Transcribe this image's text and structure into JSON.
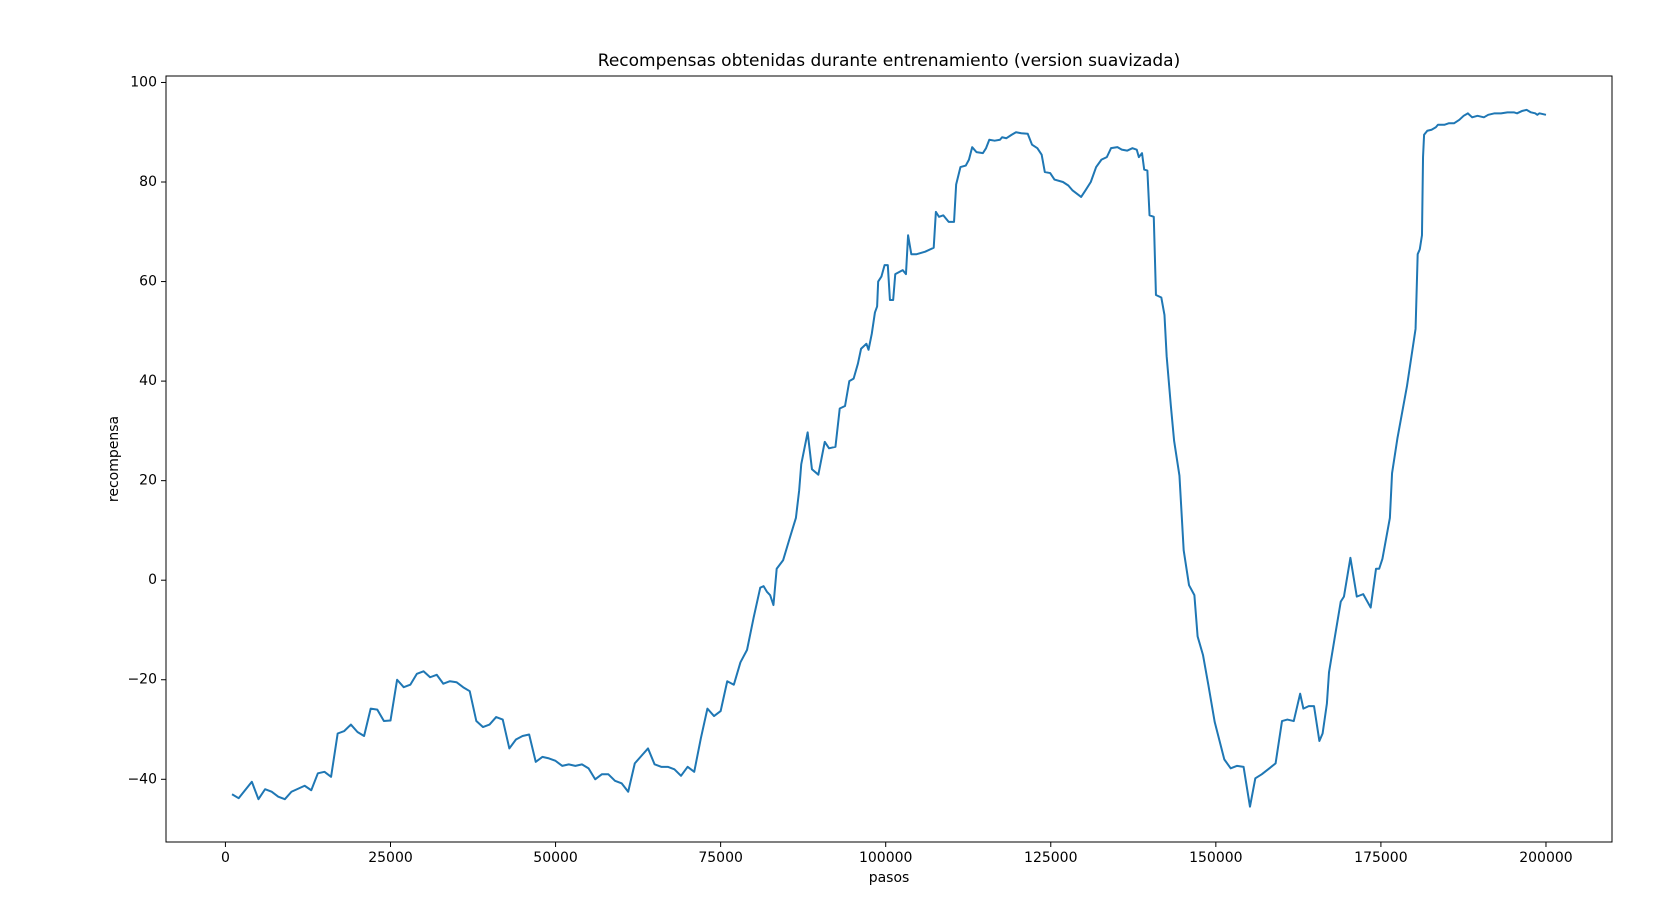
{
  "chart_data": {
    "type": "line",
    "title": "Recompensas obtenidas durante entrenamiento (version suavizada)",
    "x_label": "pasos",
    "y_label": "recompensa",
    "xlim": [
      -9000,
      210000
    ],
    "ylim": [
      -52.6,
      101.3
    ],
    "xticks": [
      0,
      25000,
      50000,
      75000,
      100000,
      125000,
      150000,
      175000,
      200000
    ],
    "yticks": [
      {
        "value": -40,
        "label": "−40"
      },
      {
        "value": -20,
        "label": "−20"
      },
      0,
      20,
      40,
      60,
      80,
      100
    ],
    "grid": false,
    "series": [
      {
        "name": "recompensa",
        "color": "#1f77b4",
        "x": [
          1000,
          2000,
          4000,
          5000,
          6000,
          7000,
          8000,
          9000,
          10000,
          12000,
          13000,
          14000,
          15000,
          16000,
          17000,
          18000,
          19000,
          20000,
          21000,
          22000,
          23000,
          24000,
          25000,
          26000,
          27000,
          28000,
          29000,
          30000,
          31000,
          32000,
          33000,
          34000,
          35000,
          36000,
          37000,
          38000,
          39000,
          40000,
          41000,
          42000,
          43000,
          44000,
          45000,
          46000,
          47000,
          48000,
          49000,
          50000,
          51000,
          52000,
          53000,
          54000,
          55000,
          56000,
          57000,
          58000,
          59000,
          60000,
          61000,
          62000,
          63000,
          64000,
          65000,
          66000,
          67000,
          68000,
          69000,
          70000,
          71000,
          72000,
          73000,
          74000,
          75000,
          76000,
          77000,
          78000,
          79000,
          80000,
          81000,
          81500,
          82000,
          82500,
          83000,
          83490,
          84460,
          85430,
          86400,
          86890,
          87210,
          88180,
          88830,
          89800,
          90770,
          91420,
          92390,
          93040,
          93840,
          94490,
          95140,
          95790,
          96270,
          97080,
          97400,
          97890,
          98370,
          98700,
          98860,
          99350,
          99830,
          100320,
          100640,
          101130,
          101450,
          102580,
          103070,
          103390,
          103880,
          104680,
          105980,
          107270,
          107600,
          108080,
          108730,
          109540,
          110350,
          110670,
          111320,
          112130,
          112610,
          113100,
          113750,
          114720,
          115200,
          115690,
          116500,
          117310,
          117630,
          118280,
          119080,
          119730,
          120540,
          121510,
          122160,
          122970,
          123620,
          124100,
          124910,
          125560,
          126850,
          127660,
          128310,
          129600,
          130250,
          131060,
          131870,
          132680,
          133490,
          134130,
          135100,
          135750,
          136560,
          137370,
          138020,
          138340,
          138820,
          139150,
          139630,
          139960,
          140600,
          140930,
          141740,
          142220,
          142550,
          143190,
          143680,
          144490,
          145130,
          145940,
          146750,
          147240,
          148050,
          148860,
          149830,
          151280,
          152250,
          153220,
          154200,
          155170,
          155980,
          156950,
          157920,
          159050,
          160020,
          160830,
          161800,
          162770,
          163260,
          164070,
          164870,
          165680,
          166170,
          166820,
          167140,
          167950,
          168920,
          169400,
          170380,
          171350,
          172320,
          173450,
          174260,
          174740,
          175230,
          176360,
          176690,
          177500,
          178950,
          180250,
          180570,
          180890,
          181220,
          181380,
          181540,
          182030,
          182670,
          183320,
          183640,
          184610,
          185260,
          186070,
          186880,
          187530,
          188170,
          188820,
          189630,
          190600,
          191250,
          192220,
          193190,
          194160,
          195130,
          195620,
          196430,
          197070,
          197720,
          198370,
          198690,
          199010,
          200000
        ],
        "values": [
          -43,
          -43.8,
          -40.5,
          -44,
          -42,
          -42.5,
          -43.5,
          -44,
          -42.5,
          -41.3,
          -42.2,
          -38.8,
          -38.5,
          -39.5,
          -30.8,
          -30.3,
          -29,
          -30.5,
          -31.3,
          -25.8,
          -26,
          -28.3,
          -28.2,
          -20,
          -21.5,
          -21,
          -18.8,
          -18.3,
          -19.5,
          -19,
          -20.8,
          -20.3,
          -20.5,
          -21.5,
          -22.3,
          -28.3,
          -29.5,
          -29,
          -27.5,
          -28,
          -33.8,
          -32,
          -31.3,
          -31,
          -36.5,
          -35.5,
          -35.8,
          -36.3,
          -37.3,
          -37,
          -37.3,
          -37,
          -37.8,
          -40,
          -39,
          -39,
          -40.3,
          -40.8,
          -42.5,
          -36.8,
          -35.3,
          -33.8,
          -37,
          -37.5,
          -37.5,
          -38,
          -39.3,
          -37.5,
          -38.5,
          -31.8,
          -25.8,
          -27.3,
          -26.3,
          -20.3,
          -21,
          -16.5,
          -14,
          -7.5,
          -1.5,
          -1.2,
          -2.3,
          -3,
          -5,
          2.3,
          4,
          8.3,
          12.5,
          18,
          23.3,
          29.7,
          22.3,
          21.2,
          27.8,
          26.5,
          26.8,
          34.5,
          35,
          40,
          40.5,
          43.5,
          46.5,
          47.5,
          46.3,
          49.5,
          53.8,
          55,
          60,
          61,
          63.3,
          63.3,
          56.3,
          56.3,
          61.5,
          62.3,
          61.5,
          69.3,
          65.5,
          65.5,
          66,
          66.8,
          74,
          73,
          73.3,
          72,
          72,
          79.5,
          83,
          83.3,
          84.5,
          87,
          86,
          85.8,
          86.8,
          88.5,
          88.3,
          88.5,
          89,
          88.8,
          89.5,
          90,
          89.8,
          89.7,
          87.5,
          86.8,
          85.5,
          82,
          81.8,
          80.5,
          80,
          79.3,
          78.3,
          77,
          78.3,
          80,
          83,
          84.5,
          85,
          86.8,
          87,
          86.5,
          86.3,
          86.8,
          86.5,
          85,
          85.8,
          82.5,
          82.3,
          73.3,
          73,
          57.3,
          56.8,
          53.3,
          45,
          35,
          28,
          21,
          6,
          -1,
          -3,
          -11.3,
          -15,
          -21,
          -28.5,
          -36,
          -37.8,
          -37.3,
          -37.5,
          -45.5,
          -39.8,
          -39,
          -38,
          -36.8,
          -28.3,
          -28,
          -28.3,
          -22.8,
          -25.8,
          -25.3,
          -25.3,
          -32.3,
          -30.8,
          -24.8,
          -18.5,
          -12,
          -4.3,
          -3.3,
          4.5,
          -3.3,
          -2.8,
          -5.5,
          2.3,
          2.3,
          4.3,
          12.5,
          21.5,
          28.5,
          39,
          50.5,
          65.5,
          66.5,
          69.3,
          85,
          89.5,
          90.3,
          90.5,
          91,
          91.5,
          91.5,
          91.8,
          91.8,
          92.5,
          93.3,
          93.8,
          93,
          93.3,
          93,
          93.5,
          93.8,
          93.8,
          94,
          94,
          93.8,
          94.3,
          94.5,
          94,
          93.8,
          93.5,
          93.8,
          93.5
        ]
      }
    ]
  }
}
